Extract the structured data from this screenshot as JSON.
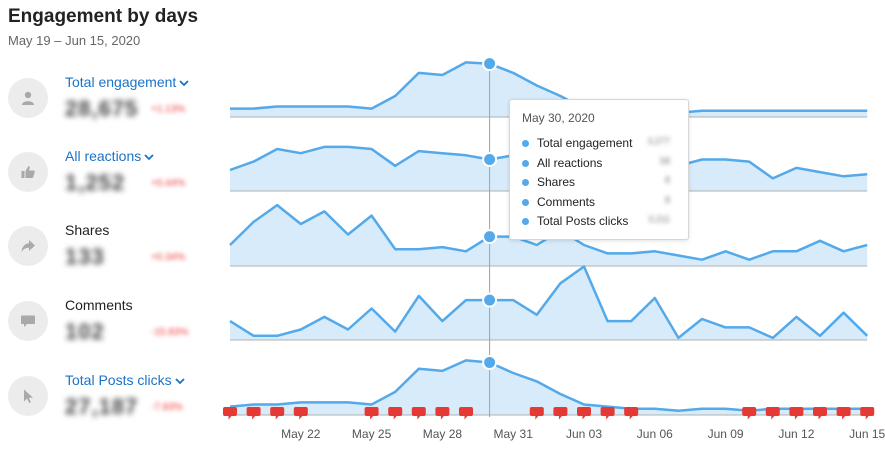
{
  "header": {
    "title": "Engagement by days",
    "date_range": "May 19 – Jun 15, 2020"
  },
  "colors": {
    "line": "#53a9ea",
    "fill": "#d8ebfa",
    "axis": "#b0b0b0",
    "crosshair": "#a0a0a0",
    "marker": "#e53935",
    "link": "#1a73c8"
  },
  "metrics": [
    {
      "key": "total_engagement",
      "label": "Total engagement",
      "dropdown": true,
      "value": "28,675",
      "delta": "+1.13%",
      "icon": "user-icon"
    },
    {
      "key": "all_reactions",
      "label": "All reactions",
      "dropdown": true,
      "value": "1,252",
      "delta": "+0.44%",
      "icon": "thumbs-up-icon"
    },
    {
      "key": "shares",
      "label": "Shares",
      "dropdown": false,
      "value": "133",
      "delta": "+0.34%",
      "icon": "share-arrow-icon"
    },
    {
      "key": "comments",
      "label": "Comments",
      "dropdown": false,
      "value": "102",
      "delta": "-15.83%",
      "icon": "comment-icon"
    },
    {
      "key": "total_posts_clicks",
      "label": "Total Posts clicks",
      "dropdown": true,
      "value": "27,187",
      "delta": "-7.83%",
      "icon": "cursor-icon"
    }
  ],
  "tooltip": {
    "date": "May 30, 2020",
    "rows": [
      {
        "label": "Total engagement",
        "value": "3,277"
      },
      {
        "label": "All reactions",
        "value": "58"
      },
      {
        "label": "Shares",
        "value": "8"
      },
      {
        "label": "Comments",
        "value": "8"
      },
      {
        "label": "Total Posts clicks",
        "value": "3,211"
      }
    ]
  },
  "chart_data": {
    "type": "line",
    "x_tick_labels": [
      "May 22",
      "May 25",
      "May 28",
      "May 31",
      "Jun 03",
      "Jun 06",
      "Jun 09",
      "Jun 12",
      "Jun 15"
    ],
    "x": [
      "May 19",
      "May 20",
      "May 21",
      "May 22",
      "May 23",
      "May 24",
      "May 25",
      "May 26",
      "May 27",
      "May 28",
      "May 29",
      "May 30",
      "May 31",
      "Jun 01",
      "Jun 02",
      "Jun 03",
      "Jun 04",
      "Jun 05",
      "Jun 06",
      "Jun 07",
      "Jun 08",
      "Jun 09",
      "Jun 10",
      "Jun 11",
      "Jun 12",
      "Jun 13",
      "Jun 14",
      "Jun 15"
    ],
    "highlight_date": "May 30",
    "series": [
      {
        "name": "Total engagement",
        "values": [
          0.2,
          0.2,
          0.25,
          0.25,
          0.25,
          0.25,
          0.2,
          0.5,
          1.05,
          1.0,
          1.3,
          1.27,
          1.05,
          0.75,
          0.5,
          0.2,
          0.15,
          0.15,
          0.1,
          0.1,
          0.15,
          0.15,
          0.15,
          0.15,
          0.15,
          0.15,
          0.15,
          0.15
        ]
      },
      {
        "name": "All reactions",
        "values": [
          0.5,
          0.7,
          1.0,
          0.9,
          1.05,
          1.05,
          1.0,
          0.6,
          0.95,
          0.9,
          0.85,
          0.75,
          0.85,
          0.7,
          0.75,
          0.8,
          0.7,
          0.75,
          0.8,
          0.6,
          0.75,
          0.75,
          0.7,
          0.3,
          0.55,
          0.45,
          0.35,
          0.4
        ]
      },
      {
        "name": "Shares",
        "values": [
          0.5,
          1.05,
          1.45,
          1.0,
          1.3,
          0.75,
          1.2,
          0.4,
          0.4,
          0.45,
          0.35,
          0.7,
          0.7,
          0.5,
          0.85,
          0.5,
          0.3,
          0.3,
          0.35,
          0.25,
          0.15,
          0.35,
          0.15,
          0.35,
          0.35,
          0.6,
          0.35,
          0.5
        ]
      },
      {
        "name": "Comments",
        "values": [
          0.45,
          0.1,
          0.1,
          0.25,
          0.55,
          0.25,
          0.75,
          0.2,
          1.05,
          0.45,
          0.95,
          0.95,
          0.95,
          0.6,
          1.35,
          1.75,
          0.45,
          0.45,
          1.0,
          0.05,
          0.5,
          0.3,
          0.3,
          0.05,
          0.55,
          0.1,
          0.65,
          0.1
        ]
      },
      {
        "name": "Total Posts clicks",
        "values": [
          0.2,
          0.25,
          0.25,
          0.3,
          0.3,
          0.3,
          0.25,
          0.55,
          1.1,
          1.05,
          1.3,
          1.25,
          1.0,
          0.8,
          0.5,
          0.25,
          0.2,
          0.15,
          0.15,
          0.1,
          0.15,
          0.15,
          0.1,
          0.15,
          0.15,
          0.15,
          0.15,
          0.15
        ]
      }
    ],
    "event_marker_dates": [
      "May 19",
      "May 20",
      "May 21",
      "May 22",
      "May 25",
      "May 26",
      "May 27",
      "May 28",
      "May 29",
      "Jun 01",
      "Jun 02",
      "Jun 03",
      "Jun 04",
      "Jun 05",
      "Jun 10",
      "Jun 11",
      "Jun 12",
      "Jun 13",
      "Jun 14",
      "Jun 15"
    ],
    "grid": false,
    "legend": "none"
  }
}
